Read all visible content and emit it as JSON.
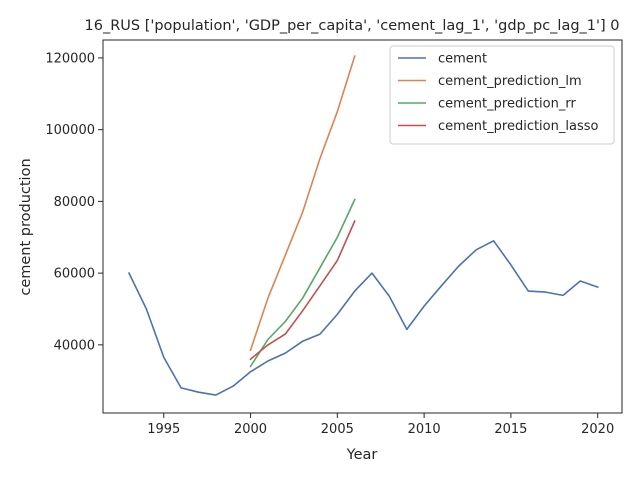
{
  "chart_data": {
    "type": "line",
    "title": "16_RUS ['population', 'GDP_per_capita', 'cement_lag_1', 'gdp_pc_lag_1'] 0",
    "xlabel": "Year",
    "ylabel": "cement production",
    "xlim": [
      1991.5,
      2021.4
    ],
    "ylim": [
      21000,
      125000
    ],
    "x_ticks": [
      1995,
      2000,
      2005,
      2010,
      2015,
      2020
    ],
    "y_ticks": [
      40000,
      60000,
      80000,
      100000,
      120000
    ],
    "x_tick_labels": [
      "1995",
      "2000",
      "2005",
      "2010",
      "2015",
      "2020"
    ],
    "y_tick_labels": [
      "40000",
      "60000",
      "80000",
      "100000",
      "120000"
    ],
    "grid": false,
    "legend_position": "top-right",
    "series": [
      {
        "name": "cement",
        "color": "#4c72b0",
        "x": [
          1993,
          1994,
          1995,
          1996,
          1997,
          1998,
          1999,
          2000,
          2001,
          2002,
          2003,
          2004,
          2005,
          2006,
          2007,
          2008,
          2009,
          2010,
          2011,
          2012,
          2013,
          2014,
          2015,
          2016,
          2017,
          2018,
          2019,
          2020
        ],
        "y": [
          60000,
          50000,
          36500,
          28000,
          26800,
          26000,
          28500,
          32500,
          35500,
          37700,
          41000,
          43000,
          48500,
          55000,
          60000,
          53500,
          44300,
          50800,
          56500,
          62000,
          66500,
          69000,
          62300,
          55000,
          54700,
          53800,
          57800,
          56100
        ]
      },
      {
        "name": "cement_prediction_lm",
        "color": "#dd8452",
        "x": [
          2000,
          2001,
          2002,
          2003,
          2004,
          2005,
          2006
        ],
        "y": [
          38500,
          53000,
          65000,
          77000,
          92000,
          105000,
          120500
        ]
      },
      {
        "name": "cement_prediction_rr",
        "color": "#55a868",
        "x": [
          2000,
          2001,
          2002,
          2003,
          2004,
          2005,
          2006
        ],
        "y": [
          34000,
          41500,
          46500,
          53000,
          61500,
          70000,
          80500
        ]
      },
      {
        "name": "cement_prediction_lasso",
        "color": "#c44e52",
        "x": [
          2000,
          2001,
          2002,
          2003,
          2004,
          2005,
          2006
        ],
        "y": [
          36000,
          40000,
          43000,
          49500,
          56500,
          63500,
          74500
        ]
      }
    ]
  }
}
